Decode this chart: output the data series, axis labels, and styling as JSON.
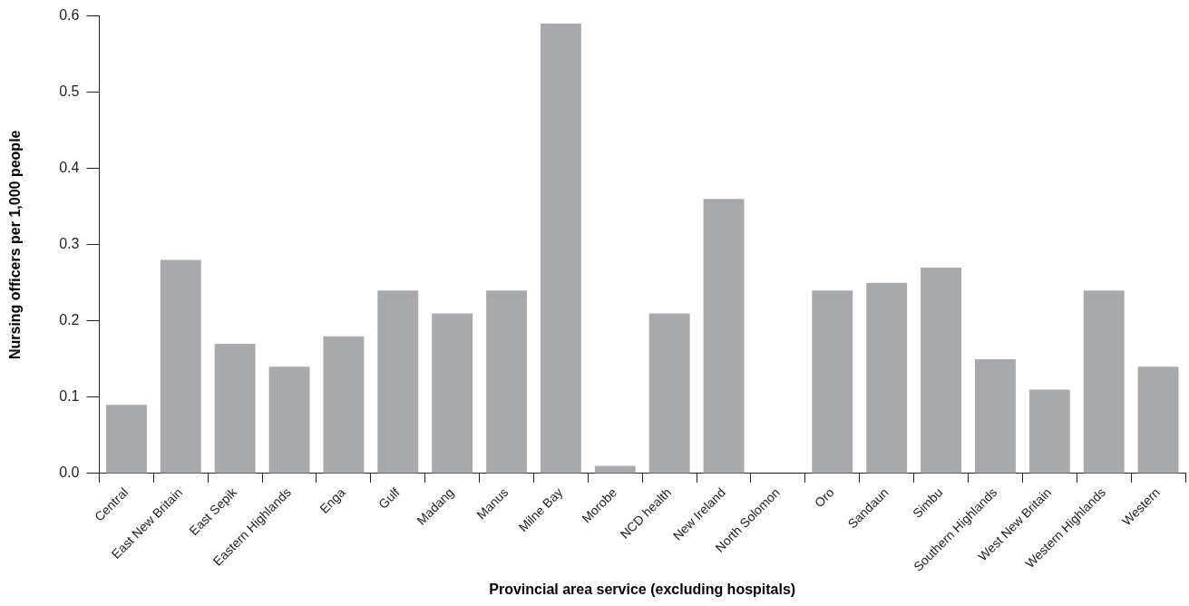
{
  "chart_data": {
    "type": "bar",
    "xlabel": "Provincial area service (excluding hospitals)",
    "ylabel": "Nursing officers per 1,000 people",
    "categories": [
      "Central",
      "East New Britain",
      "East Sepik",
      "Eastern Highlands",
      "Enga",
      "Gulf",
      "Madang",
      "Manus",
      "Milne Bay",
      "Morobe",
      "NCD health",
      "New Ireland",
      "North Solomon",
      "Oro",
      "Sandaun",
      "Simbu",
      "Southern Highlands",
      "West New Britain",
      "Western Highlands",
      "Western"
    ],
    "values": [
      0.09,
      0.28,
      0.17,
      0.14,
      0.18,
      0.24,
      0.21,
      0.24,
      0.59,
      0.01,
      0.21,
      0.36,
      0,
      0.24,
      0.25,
      0.27,
      0.15,
      0.11,
      0.24,
      0.14
    ],
    "color": "#a7a9ac",
    "ylim": [
      0,
      0.6
    ],
    "yticks": [
      {
        "value": 0,
        "label": "0.0"
      },
      0.1,
      0.2,
      0.3,
      0.4,
      0.5,
      0.6
    ],
    "grid": false,
    "legend": false
  }
}
